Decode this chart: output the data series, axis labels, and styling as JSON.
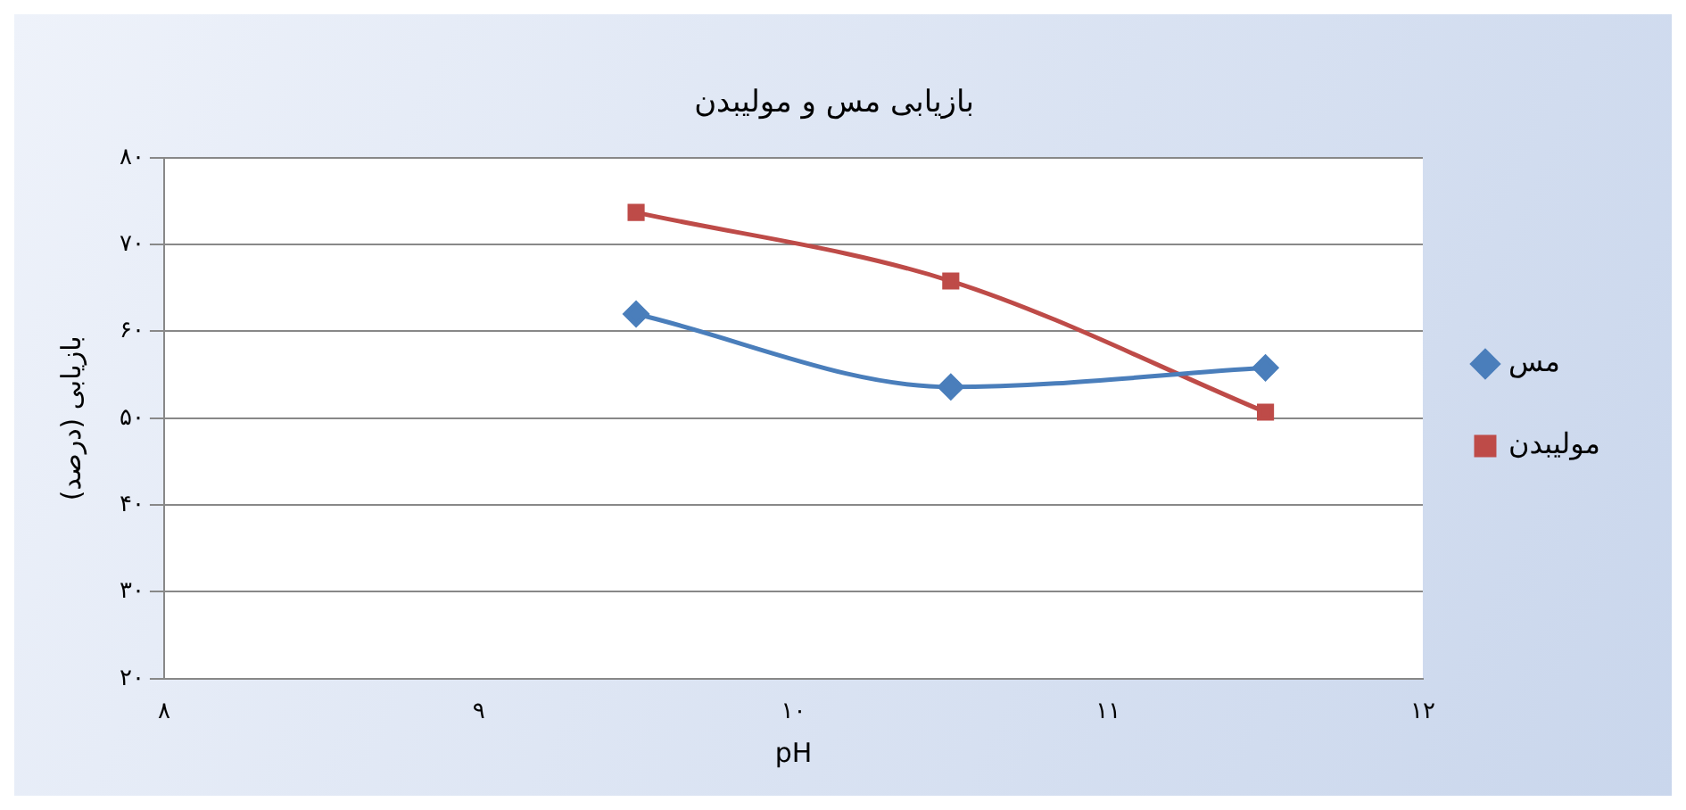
{
  "chart_data": {
    "type": "line",
    "title": "بازیابی مس و مولیبدن",
    "xlabel": "pH",
    "ylabel": "بازیابی (درصد)",
    "x": [
      9.5,
      10.5,
      11.5
    ],
    "series": [
      {
        "name": "مس",
        "color": "#4a7ebb",
        "values": [
          62,
          53.6,
          55.8
        ],
        "marker": "diamond"
      },
      {
        "name": "مولیبدن",
        "color": "#be4b48",
        "values": [
          73.7,
          65.8,
          50.7
        ],
        "marker": "square"
      }
    ],
    "xlim": [
      8,
      12
    ],
    "xticks": [
      {
        "value": 8,
        "label": "۸"
      },
      {
        "value": 9,
        "label": "۹"
      },
      {
        "value": 10,
        "label": "۱۰"
      },
      {
        "value": 11,
        "label": "۱۱"
      },
      {
        "value": 12,
        "label": "۱۲"
      }
    ],
    "ylim": [
      20,
      80
    ],
    "yticks": [
      {
        "value": 20,
        "label": "۲۰"
      },
      {
        "value": 30,
        "label": "۳۰"
      },
      {
        "value": 40,
        "label": "۴۰"
      },
      {
        "value": 50,
        "label": "۵۰"
      },
      {
        "value": 60,
        "label": "۶۰"
      },
      {
        "value": 70,
        "label": "۷۰"
      },
      {
        "value": 80,
        "label": "۸۰"
      }
    ],
    "grid": "y",
    "legend": "right",
    "line_style": "solid"
  }
}
